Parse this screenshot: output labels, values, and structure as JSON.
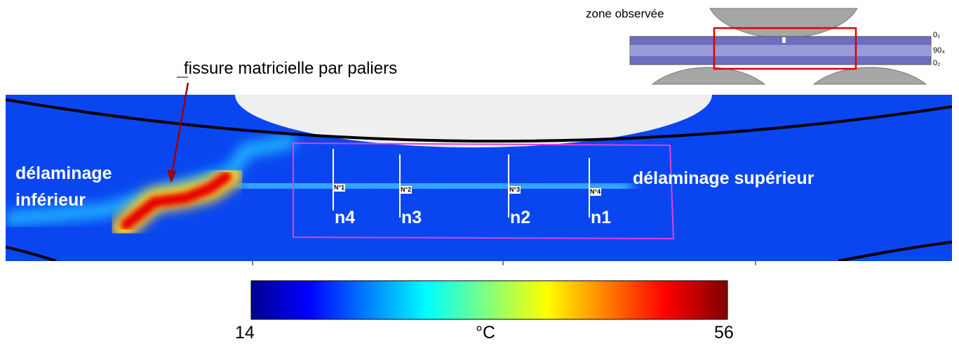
{
  "schematic": {
    "label": "zone observée",
    "plies": [
      "0₂",
      "90₄",
      "0₂"
    ]
  },
  "annotations": {
    "crack": "fissure matricielle par paliers",
    "lower": "délaminage inférieur",
    "upper": "délaminage supérieur"
  },
  "markers": [
    {
      "tag": "N°1",
      "name": "n4"
    },
    {
      "tag": "N°2",
      "name": "n3"
    },
    {
      "tag": "N°3",
      "name": "n2"
    },
    {
      "tag": "N°4",
      "name": "n1"
    }
  ],
  "colorbar": {
    "min": "14",
    "unit": "°C",
    "max": "56"
  }
}
